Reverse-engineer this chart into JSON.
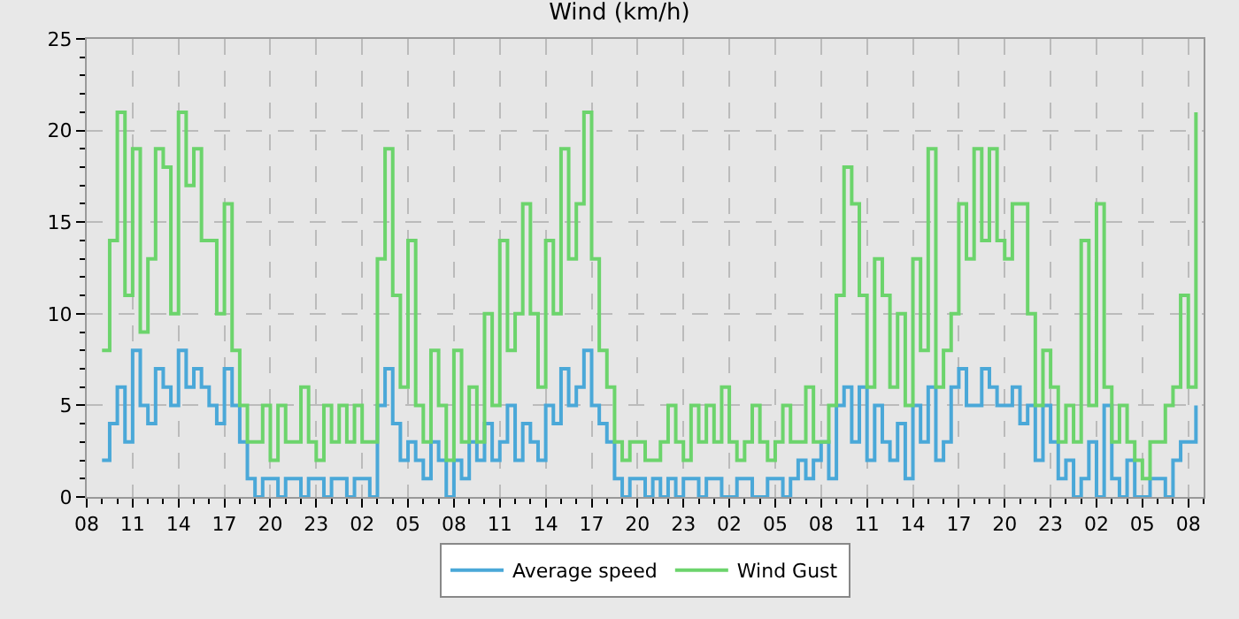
{
  "chart_data": {
    "type": "step",
    "title": "Wind (km/h)",
    "x": [
      "--01-01T09:00",
      "--01-01T09:30",
      "--01-01T10:00",
      "--01-01T10:30",
      "--01-01T11:00",
      "--01-01T11:30",
      "--01-01T12:00",
      "--01-01T12:30",
      "--01-01T13:00",
      "--01-01T13:30",
      "--01-01T14:00",
      "--01-01T14:30",
      "--01-01T15:00",
      "--01-01T15:30",
      "--01-01T16:00",
      "--01-01T16:30",
      "--01-01T17:00",
      "--01-01T17:30",
      "--01-01T18:00",
      "--01-01T18:30",
      "--01-01T19:00",
      "--01-01T19:30",
      "--01-01T20:00",
      "--01-01T20:30",
      "--01-01T21:00",
      "--01-01T21:30",
      "--01-01T22:00",
      "--01-01T22:30",
      "--01-01T23:00",
      "--01-01T23:30",
      "--01-02T00:00",
      "--01-02T00:30",
      "--01-02T01:00",
      "--01-02T01:30",
      "--01-02T02:00",
      "--01-02T02:30",
      "--01-02T03:00",
      "--01-02T03:30",
      "--01-02T04:00",
      "--01-02T04:30",
      "--01-02T05:00",
      "--01-02T05:30",
      "--01-02T06:00",
      "--01-02T06:30",
      "--01-02T07:00",
      "--01-02T07:30",
      "--01-02T08:00",
      "--01-02T08:30",
      "--01-02T09:00",
      "--01-02T09:30",
      "--01-02T10:00",
      "--01-02T10:30",
      "--01-02T11:00",
      "--01-02T11:30",
      "--01-02T12:00",
      "--01-02T12:30",
      "--01-02T13:00",
      "--01-02T13:30",
      "--01-02T14:00",
      "--01-02T14:30",
      "--01-02T15:00",
      "--01-02T15:30",
      "--01-02T16:00",
      "--01-02T16:30",
      "--01-02T17:00",
      "--01-02T17:30",
      "--01-02T18:00",
      "--01-02T18:30",
      "--01-02T19:00",
      "--01-02T19:30",
      "--01-02T20:00",
      "--01-02T20:30",
      "--01-02T21:00",
      "--01-02T21:30",
      "--01-02T22:00",
      "--01-02T22:30",
      "--01-02T23:00",
      "--01-02T23:30",
      "--01-03T00:00",
      "--01-03T00:30",
      "--01-03T01:00",
      "--01-03T01:30",
      "--01-03T02:00",
      "--01-03T02:30",
      "--01-03T03:00",
      "--01-03T03:30",
      "--01-03T04:00",
      "--01-03T04:30",
      "--01-03T05:00",
      "--01-03T05:30",
      "--01-03T06:00",
      "--01-03T06:30",
      "--01-03T07:00",
      "--01-03T07:30",
      "--01-03T08:00",
      "--01-03T08:30",
      "--01-03T09:00",
      "--01-03T09:30",
      "--01-03T10:00",
      "--01-03T10:30",
      "--01-03T11:00",
      "--01-03T11:30",
      "--01-03T12:00",
      "--01-03T12:30",
      "--01-03T13:00",
      "--01-03T13:30",
      "--01-03T14:00",
      "--01-03T14:30",
      "--01-03T15:00",
      "--01-03T15:30",
      "--01-03T16:00",
      "--01-03T16:30",
      "--01-03T17:00",
      "--01-03T17:30",
      "--01-03T18:00",
      "--01-03T18:30",
      "--01-03T19:00",
      "--01-03T19:30",
      "--01-03T20:00",
      "--01-03T20:30",
      "--01-03T21:00",
      "--01-03T21:30",
      "--01-03T22:00",
      "--01-03T22:30",
      "--01-03T23:00",
      "--01-03T23:30",
      "--01-04T00:00",
      "--01-04T00:30",
      "--01-04T01:00",
      "--01-04T01:30",
      "--01-04T02:00",
      "--01-04T02:30",
      "--01-04T03:00",
      "--01-04T03:30",
      "--01-04T04:00",
      "--01-04T04:30",
      "--01-04T05:00",
      "--01-04T05:30",
      "--01-04T06:00",
      "--01-04T06:30",
      "--01-04T07:00",
      "--01-04T07:30",
      "--01-04T08:00",
      "--01-04T08:30"
    ],
    "series": [
      {
        "name": "Average speed",
        "color": "#4aa8d8",
        "values": [
          2,
          4,
          6,
          3,
          8,
          5,
          4,
          7,
          6,
          5,
          8,
          6,
          7,
          6,
          5,
          4,
          7,
          5,
          3,
          1,
          0,
          1,
          1,
          0,
          1,
          1,
          0,
          1,
          1,
          0,
          1,
          1,
          0,
          1,
          1,
          0,
          5,
          7,
          4,
          2,
          3,
          2,
          1,
          3,
          2,
          0,
          2,
          1,
          3,
          2,
          4,
          2,
          3,
          5,
          2,
          4,
          3,
          2,
          5,
          4,
          7,
          5,
          6,
          8,
          5,
          4,
          3,
          1,
          0,
          1,
          1,
          0,
          1,
          0,
          1,
          0,
          1,
          1,
          0,
          1,
          1,
          0,
          0,
          1,
          1,
          0,
          0,
          1,
          1,
          0,
          1,
          2,
          1,
          2,
          3,
          1,
          5,
          6,
          3,
          6,
          2,
          5,
          3,
          2,
          4,
          1,
          5,
          3,
          6,
          2,
          3,
          6,
          7,
          5,
          5,
          7,
          6,
          5,
          5,
          6,
          4,
          5,
          2,
          5,
          3,
          1,
          2,
          0,
          1,
          3,
          0,
          5,
          1,
          0,
          2,
          0,
          0,
          1,
          1,
          0,
          2,
          3,
          3,
          5
        ]
      },
      {
        "name": "Wind Gust",
        "color": "#6cd46c",
        "values": [
          8,
          14,
          21,
          11,
          19,
          9,
          13,
          19,
          18,
          10,
          21,
          17,
          19,
          14,
          14,
          10,
          16,
          8,
          5,
          3,
          3,
          5,
          2,
          5,
          3,
          3,
          6,
          3,
          2,
          5,
          3,
          5,
          3,
          5,
          3,
          3,
          13,
          19,
          11,
          6,
          14,
          5,
          3,
          8,
          5,
          2,
          8,
          3,
          6,
          3,
          10,
          5,
          14,
          8,
          10,
          16,
          10,
          6,
          14,
          10,
          19,
          13,
          16,
          21,
          13,
          8,
          6,
          3,
          2,
          3,
          3,
          2,
          2,
          3,
          5,
          3,
          2,
          5,
          3,
          5,
          3,
          6,
          3,
          2,
          3,
          5,
          3,
          2,
          3,
          5,
          3,
          3,
          6,
          3,
          3,
          5,
          11,
          18,
          16,
          11,
          6,
          13,
          11,
          6,
          10,
          5,
          13,
          8,
          19,
          6,
          8,
          10,
          16,
          13,
          19,
          14,
          19,
          14,
          13,
          16,
          16,
          10,
          5,
          8,
          6,
          3,
          5,
          3,
          14,
          5,
          16,
          6,
          3,
          5,
          3,
          2,
          1,
          3,
          3,
          5,
          6,
          11,
          6,
          21
        ]
      }
    ],
    "xlim": [
      "--01-01T08:00",
      "--01-04T09:00"
    ],
    "xticks": [
      {
        "value": "--01-01T08:00",
        "label": "08"
      },
      {
        "value": "--01-01T11:00",
        "label": "11"
      },
      {
        "value": "--01-01T14:00",
        "label": "14"
      },
      {
        "value": "--01-01T17:00",
        "label": "17"
      },
      {
        "value": "--01-01T20:00",
        "label": "20"
      },
      {
        "value": "--01-01T23:00",
        "label": "23"
      },
      {
        "value": "--01-02T02:00",
        "label": "02"
      },
      {
        "value": "--01-02T05:00",
        "label": "05"
      },
      {
        "value": "--01-02T08:00",
        "label": "08"
      },
      {
        "value": "--01-02T11:00",
        "label": "11"
      },
      {
        "value": "--01-02T14:00",
        "label": "14"
      },
      {
        "value": "--01-02T17:00",
        "label": "17"
      },
      {
        "value": "--01-02T20:00",
        "label": "20"
      },
      {
        "value": "--01-02T23:00",
        "label": "23"
      },
      {
        "value": "--01-03T02:00",
        "label": "02"
      },
      {
        "value": "--01-03T05:00",
        "label": "05"
      },
      {
        "value": "--01-03T08:00",
        "label": "08"
      },
      {
        "value": "--01-03T11:00",
        "label": "11"
      },
      {
        "value": "--01-03T14:00",
        "label": "14"
      },
      {
        "value": "--01-03T17:00",
        "label": "17"
      },
      {
        "value": "--01-03T20:00",
        "label": "20"
      },
      {
        "value": "--01-03T23:00",
        "label": "23"
      },
      {
        "value": "--01-04T02:00",
        "label": "02"
      },
      {
        "value": "--01-04T05:00",
        "label": "05"
      },
      {
        "value": "--01-04T08:00",
        "label": "08"
      }
    ],
    "ylim": [
      0,
      25
    ],
    "yticks": [
      0,
      5,
      10,
      15,
      20,
      25
    ],
    "grid": true,
    "legend": "bottom",
    "line_style": "solid"
  }
}
